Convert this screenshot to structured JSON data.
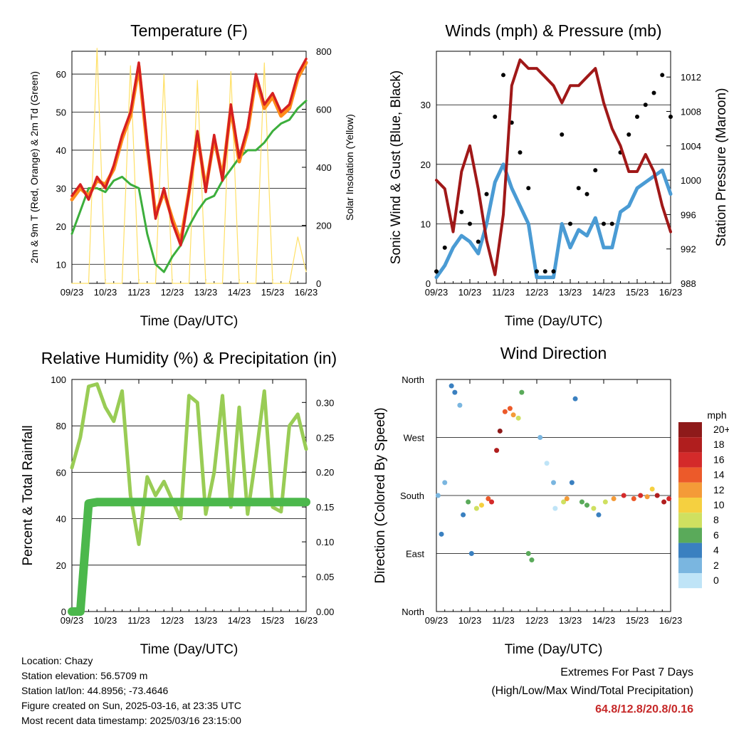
{
  "x_ticks": [
    "09/23",
    "10/23",
    "11/23",
    "12/23",
    "13/23",
    "14/23",
    "15/23",
    "16/23"
  ],
  "x_label": "Time (Day/UTC)",
  "colors": {
    "temp2m": "#d62020",
    "temp9m": "#ff8c1a",
    "dewpoint": "#3cae3c",
    "solar": "#ffe066",
    "wind": "#4a9bd4",
    "gust": "#000000",
    "pressure": "#a01818",
    "rh": "#99cc55",
    "precip": "#4cb84c",
    "extremes_values": "#c62828"
  },
  "panels": {
    "temperature": {
      "title": "Temperature (F)",
      "left_label": "2m & 9m T (Red, Orange) & 2m Td (Green)",
      "right_label": "Solar Insolation (Yellow)",
      "left_ticks": [
        "10",
        "20",
        "30",
        "40",
        "50",
        "60"
      ],
      "right_ticks": [
        "0",
        "200",
        "400",
        "600",
        "800"
      ]
    },
    "winds": {
      "title": "Winds (mph) & Pressure (mb)",
      "left_label": "Sonic Wind & Gust (Blue, Black)",
      "right_label": "Station Pressure (Maroon)",
      "left_ticks": [
        "0",
        "10",
        "20",
        "30"
      ],
      "right_ticks": [
        "988",
        "992",
        "996",
        "1000",
        "1004",
        "1008",
        "1012"
      ]
    },
    "humidity": {
      "title": "Relative Humidity (%) & Precipitation (in)",
      "left_label": "Percent & Total Rainfall",
      "left_ticks": [
        "0",
        "20",
        "40",
        "60",
        "80",
        "100"
      ],
      "right_ticks": [
        "0.00",
        "0.05",
        "0.10",
        "0.15",
        "0.20",
        "0.25",
        "0.30"
      ]
    },
    "direction": {
      "title": "Wind Direction",
      "left_label": "Direction (Colored By Speed)",
      "left_ticks": [
        "North",
        "East",
        "South",
        "West",
        "North"
      ],
      "legend_title": "mph",
      "legend_labels": [
        "20+",
        "18",
        "16",
        "14",
        "12",
        "10",
        "8",
        "6",
        "4",
        "2",
        "0"
      ],
      "legend_colors": [
        "#8e1a1a",
        "#b01e1e",
        "#d42a2a",
        "#ec5a2a",
        "#f49b38",
        "#f5d040",
        "#cfe060",
        "#5aaa5a",
        "#3a80c0",
        "#7ab6e0",
        "#bfe4f7"
      ]
    }
  },
  "station": {
    "location": "Location: Chazy",
    "elevation": "Station elevation: 56.5709 m",
    "latlon": "Station lat/lon: 44.8956; -73.4646",
    "created": "Figure created on Sun, 2025-03-16, at 23:35 UTC",
    "recent": "Most recent data timestamp: 2025/03/16 23:15:00"
  },
  "extremes": {
    "line1": "Extremes For Past 7 Days",
    "line2": "(High/Low/Max Wind/Total Precipitation)",
    "values": "64.8/12.8/20.8/0.16"
  },
  "chart_data": [
    {
      "type": "line",
      "title": "Temperature (F)",
      "xlabel": "Time (Day/UTC)",
      "ylabel": "2m & 9m T (Red, Orange) & 2m Td (Green)",
      "y2label": "Solar Insolation (Yellow)",
      "x": [
        9.0,
        9.25,
        9.5,
        9.75,
        10.0,
        10.25,
        10.5,
        10.75,
        11.0,
        11.25,
        11.5,
        11.75,
        12.0,
        12.25,
        12.5,
        12.75,
        13.0,
        13.25,
        13.5,
        13.75,
        14.0,
        14.25,
        14.5,
        14.75,
        15.0,
        15.25,
        15.5,
        15.75,
        16.0
      ],
      "xlim": [
        9.0,
        16.0
      ],
      "ylim": [
        5,
        66
      ],
      "y2lim": [
        0,
        800
      ],
      "series": [
        {
          "name": "2m T",
          "axis": "left",
          "values": [
            28,
            31,
            27,
            33,
            30,
            36,
            44,
            50,
            63,
            42,
            22,
            30,
            21,
            15,
            29,
            45,
            29,
            44,
            32,
            52,
            38,
            46,
            60,
            52,
            55,
            50,
            52,
            60,
            64
          ]
        },
        {
          "name": "9m T",
          "axis": "left",
          "values": [
            27,
            30,
            28,
            32,
            31,
            35,
            43,
            49,
            62,
            41,
            23,
            29,
            22,
            16,
            29,
            44,
            30,
            43,
            33,
            51,
            37,
            45,
            59,
            51,
            54,
            49,
            51,
            59,
            63
          ]
        },
        {
          "name": "2m Td",
          "axis": "left",
          "values": [
            18,
            24,
            30,
            30,
            29,
            32,
            33,
            31,
            30,
            18,
            10,
            8,
            12,
            15,
            20,
            24,
            27,
            28,
            32,
            35,
            38,
            40,
            40,
            42,
            45,
            47,
            48,
            51,
            53
          ]
        },
        {
          "name": "Solar",
          "axis": "right",
          "values": [
            0,
            0,
            0,
            810,
            0,
            0,
            0,
            750,
            0,
            0,
            0,
            720,
            0,
            0,
            0,
            700,
            0,
            0,
            0,
            730,
            0,
            0,
            0,
            760,
            0,
            0,
            0,
            160,
            40
          ]
        }
      ]
    },
    {
      "type": "scatter",
      "title": "Winds (mph) & Pressure (mb)",
      "xlabel": "Time (Day/UTC)",
      "ylabel": "Sonic Wind & Gust (Blue, Black)",
      "y2label": "Station Pressure (Maroon)",
      "x": [
        9.0,
        9.25,
        9.5,
        9.75,
        10.0,
        10.25,
        10.5,
        10.75,
        11.0,
        11.25,
        11.5,
        11.75,
        12.0,
        12.25,
        12.5,
        12.75,
        13.0,
        13.25,
        13.5,
        13.75,
        14.0,
        14.25,
        14.5,
        14.75,
        15.0,
        15.25,
        15.5,
        15.75,
        16.0
      ],
      "xlim": [
        9.0,
        16.0
      ],
      "ylim": [
        0,
        39
      ],
      "y2lim": [
        988,
        1015
      ],
      "series": [
        {
          "name": "Sonic Wind",
          "axis": "left",
          "values": [
            1,
            3,
            6,
            8,
            7,
            5,
            10,
            17,
            20,
            16,
            13,
            10,
            1,
            1,
            1,
            10,
            6,
            9,
            8,
            11,
            6,
            6,
            12,
            13,
            16,
            17,
            18,
            19,
            15
          ]
        },
        {
          "name": "Gust",
          "axis": "left",
          "values": [
            2,
            6,
            10,
            12,
            10,
            7,
            15,
            28,
            35,
            27,
            22,
            16,
            2,
            2,
            2,
            25,
            10,
            16,
            15,
            19,
            10,
            10,
            22,
            25,
            28,
            30,
            32,
            35,
            28
          ]
        },
        {
          "name": "Station Pressure",
          "axis": "right",
          "values": [
            1000,
            999,
            994,
            1001,
            1004,
            999,
            993,
            989,
            996,
            1011,
            1014,
            1013,
            1013,
            1012,
            1011,
            1009,
            1011,
            1011,
            1012,
            1013,
            1009,
            1006,
            1004,
            1001,
            1001,
            1003,
            1001,
            997,
            994
          ]
        }
      ]
    },
    {
      "type": "line",
      "title": "Relative Humidity (%) & Precipitation (in)",
      "xlabel": "Time (Day/UTC)",
      "ylabel": "Percent & Total Rainfall",
      "x": [
        9.0,
        9.25,
        9.5,
        9.75,
        10.0,
        10.25,
        10.5,
        10.75,
        11.0,
        11.25,
        11.5,
        11.75,
        12.0,
        12.25,
        12.5,
        12.75,
        13.0,
        13.25,
        13.5,
        13.75,
        14.0,
        14.25,
        14.5,
        14.75,
        15.0,
        15.25,
        15.5,
        15.75,
        16.0
      ],
      "xlim": [
        9.0,
        16.0
      ],
      "ylim": [
        0,
        100
      ],
      "y2lim": [
        0,
        0.333
      ],
      "series": [
        {
          "name": "Relative Humidity",
          "axis": "left",
          "values": [
            62,
            75,
            97,
            98,
            88,
            82,
            95,
            50,
            29,
            58,
            50,
            56,
            48,
            40,
            93,
            90,
            42,
            60,
            93,
            45,
            88,
            42,
            67,
            95,
            45,
            43,
            80,
            85,
            70
          ]
        },
        {
          "name": "Total Precipitation",
          "axis": "right",
          "values": [
            0.0,
            0.0,
            0.155,
            0.157,
            0.157,
            0.157,
            0.157,
            0.157,
            0.157,
            0.157,
            0.157,
            0.157,
            0.157,
            0.157,
            0.157,
            0.157,
            0.157,
            0.157,
            0.157,
            0.157,
            0.157,
            0.157,
            0.157,
            0.157,
            0.157,
            0.157,
            0.157,
            0.157,
            0.157
          ]
        }
      ]
    },
    {
      "type": "scatter",
      "title": "Wind Direction",
      "xlabel": "Time (Day/UTC)",
      "ylabel": "Direction (Colored By Speed)",
      "xlim": [
        9.0,
        16.0
      ],
      "ylim": [
        0,
        360
      ],
      "y_ticks": [
        "North",
        "East",
        "South",
        "West",
        "North"
      ],
      "points": [
        {
          "x": 9.05,
          "dir": 180,
          "speed": 2
        },
        {
          "x": 9.15,
          "dir": 120,
          "speed": 3
        },
        {
          "x": 9.25,
          "dir": 200,
          "speed": 1
        },
        {
          "x": 9.45,
          "dir": 350,
          "speed": 4
        },
        {
          "x": 9.55,
          "dir": 340,
          "speed": 3
        },
        {
          "x": 9.7,
          "dir": 320,
          "speed": 2
        },
        {
          "x": 9.8,
          "dir": 150,
          "speed": 3
        },
        {
          "x": 9.95,
          "dir": 170,
          "speed": 6
        },
        {
          "x": 10.05,
          "dir": 90,
          "speed": 4
        },
        {
          "x": 10.2,
          "dir": 160,
          "speed": 8
        },
        {
          "x": 10.35,
          "dir": 165,
          "speed": 10
        },
        {
          "x": 10.55,
          "dir": 175,
          "speed": 14
        },
        {
          "x": 10.65,
          "dir": 170,
          "speed": 16
        },
        {
          "x": 10.8,
          "dir": 250,
          "speed": 18
        },
        {
          "x": 10.9,
          "dir": 280,
          "speed": 20
        },
        {
          "x": 11.05,
          "dir": 310,
          "speed": 14
        },
        {
          "x": 11.2,
          "dir": 315,
          "speed": 13
        },
        {
          "x": 11.3,
          "dir": 305,
          "speed": 12
        },
        {
          "x": 11.45,
          "dir": 300,
          "speed": 8
        },
        {
          "x": 11.55,
          "dir": 340,
          "speed": 5
        },
        {
          "x": 11.75,
          "dir": 90,
          "speed": 6
        },
        {
          "x": 11.85,
          "dir": 80,
          "speed": 5
        },
        {
          "x": 12.1,
          "dir": 270,
          "speed": 1
        },
        {
          "x": 12.3,
          "dir": 230,
          "speed": 0
        },
        {
          "x": 12.5,
          "dir": 200,
          "speed": 1
        },
        {
          "x": 12.55,
          "dir": 160,
          "speed": 0
        },
        {
          "x": 12.8,
          "dir": 170,
          "speed": 8
        },
        {
          "x": 12.9,
          "dir": 175,
          "speed": 12
        },
        {
          "x": 13.05,
          "dir": 200,
          "speed": 4
        },
        {
          "x": 13.15,
          "dir": 330,
          "speed": 3
        },
        {
          "x": 13.35,
          "dir": 170,
          "speed": 5
        },
        {
          "x": 13.5,
          "dir": 165,
          "speed": 6
        },
        {
          "x": 13.7,
          "dir": 160,
          "speed": 7
        },
        {
          "x": 13.85,
          "dir": 150,
          "speed": 4
        },
        {
          "x": 14.05,
          "dir": 170,
          "speed": 8
        },
        {
          "x": 14.3,
          "dir": 175,
          "speed": 12
        },
        {
          "x": 14.6,
          "dir": 180,
          "speed": 15
        },
        {
          "x": 14.9,
          "dir": 175,
          "speed": 14
        },
        {
          "x": 15.1,
          "dir": 180,
          "speed": 16
        },
        {
          "x": 15.3,
          "dir": 178,
          "speed": 12
        },
        {
          "x": 15.45,
          "dir": 190,
          "speed": 10
        },
        {
          "x": 15.6,
          "dir": 180,
          "speed": 17
        },
        {
          "x": 15.8,
          "dir": 170,
          "speed": 18
        },
        {
          "x": 15.95,
          "dir": 175,
          "speed": 16
        }
      ]
    }
  ]
}
